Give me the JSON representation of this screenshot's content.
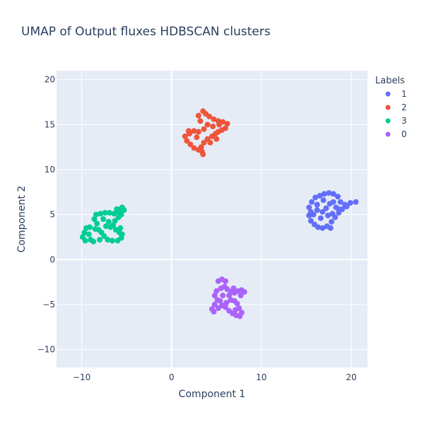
{
  "chart_data": {
    "type": "scatter",
    "title": "UMAP of Output fluxes HDBSCAN clusters",
    "xlabel": "Component 1",
    "ylabel": "Component 2",
    "xlim": [
      -12.8,
      21.8
    ],
    "ylim": [
      -12.0,
      21.0
    ],
    "xticks": [
      -10,
      0,
      10,
      20
    ],
    "yticks": [
      -10,
      -5,
      0,
      5,
      10,
      15,
      20
    ],
    "xtick_labels": [
      "−10",
      "0",
      "10",
      "20"
    ],
    "ytick_labels": [
      "−10",
      "−5",
      "0",
      "5",
      "10",
      "15",
      "20"
    ],
    "grid": true,
    "legend": {
      "title": "Labels",
      "placement": "right",
      "entries": [
        "1",
        "2",
        "3",
        "0"
      ]
    },
    "series": [
      {
        "name": "1",
        "color": "#636efa",
        "points": [
          [
            15.3,
            5.8
          ],
          [
            15.6,
            6.4
          ],
          [
            16.0,
            6.9
          ],
          [
            16.5,
            7.1
          ],
          [
            17.0,
            7.3
          ],
          [
            17.5,
            7.4
          ],
          [
            18.0,
            7.3
          ],
          [
            18.5,
            7.0
          ],
          [
            18.8,
            6.4
          ],
          [
            19.3,
            6.1
          ],
          [
            19.9,
            6.3
          ],
          [
            20.5,
            6.4
          ],
          [
            19.5,
            5.9
          ],
          [
            19.0,
            5.6
          ],
          [
            18.6,
            5.2
          ],
          [
            18.2,
            4.7
          ],
          [
            17.8,
            4.2
          ],
          [
            17.3,
            3.7
          ],
          [
            16.8,
            3.5
          ],
          [
            16.3,
            3.6
          ],
          [
            15.9,
            3.9
          ],
          [
            15.5,
            4.3
          ],
          [
            15.3,
            4.9
          ],
          [
            15.5,
            5.3
          ],
          [
            16.2,
            5.5
          ],
          [
            16.8,
            5.3
          ],
          [
            17.2,
            5.7
          ],
          [
            17.6,
            6.2
          ],
          [
            18.0,
            6.4
          ],
          [
            16.6,
            4.6
          ],
          [
            17.4,
            4.9
          ],
          [
            17.9,
            5.1
          ],
          [
            18.3,
            5.8
          ],
          [
            16.2,
            6.1
          ],
          [
            15.8,
            5.0
          ],
          [
            16.9,
            6.6
          ],
          [
            17.7,
            3.5
          ],
          [
            18.6,
            5.6
          ]
        ]
      },
      {
        "name": "2",
        "color": "#ef553b",
        "points": [
          [
            3.0,
            16.0
          ],
          [
            3.5,
            16.5
          ],
          [
            3.8,
            16.2
          ],
          [
            4.2,
            15.9
          ],
          [
            4.7,
            15.6
          ],
          [
            5.2,
            15.4
          ],
          [
            5.7,
            15.3
          ],
          [
            6.2,
            15.1
          ],
          [
            6.0,
            14.6
          ],
          [
            5.6,
            14.4
          ],
          [
            5.2,
            14.2
          ],
          [
            4.9,
            14.0
          ],
          [
            4.5,
            13.7
          ],
          [
            4.0,
            13.4
          ],
          [
            3.6,
            13.0
          ],
          [
            3.3,
            12.5
          ],
          [
            3.4,
            12.0
          ],
          [
            3.5,
            11.7
          ],
          [
            3.0,
            12.2
          ],
          [
            2.5,
            12.4
          ],
          [
            2.1,
            12.8
          ],
          [
            1.7,
            13.2
          ],
          [
            1.5,
            13.7
          ],
          [
            2.0,
            14.0
          ],
          [
            2.5,
            14.3
          ],
          [
            3.0,
            14.2
          ],
          [
            3.6,
            14.5
          ],
          [
            4.0,
            15.0
          ],
          [
            4.6,
            14.8
          ],
          [
            5.3,
            15.0
          ],
          [
            2.8,
            13.6
          ],
          [
            4.3,
            13.0
          ],
          [
            5.0,
            13.4
          ],
          [
            3.2,
            15.4
          ],
          [
            1.9,
            14.3
          ]
        ]
      },
      {
        "name": "3",
        "color": "#00cc96",
        "points": [
          [
            -9.9,
            2.5
          ],
          [
            -9.7,
            3.0
          ],
          [
            -9.5,
            3.5
          ],
          [
            -9.2,
            2.8
          ],
          [
            -9.0,
            2.2
          ],
          [
            -8.7,
            2.0
          ],
          [
            -8.5,
            3.4
          ],
          [
            -8.3,
            4.0
          ],
          [
            -8.6,
            4.5
          ],
          [
            -8.4,
            5.0
          ],
          [
            -7.9,
            5.1
          ],
          [
            -7.4,
            5.2
          ],
          [
            -6.9,
            5.2
          ],
          [
            -6.4,
            5.1
          ],
          [
            -6.0,
            5.3
          ],
          [
            -5.7,
            5.6
          ],
          [
            -5.5,
            5.8
          ],
          [
            -5.3,
            5.5
          ],
          [
            -5.6,
            5.0
          ],
          [
            -5.9,
            4.7
          ],
          [
            -6.3,
            4.3
          ],
          [
            -6.5,
            3.8
          ],
          [
            -6.2,
            3.3
          ],
          [
            -5.8,
            3.0
          ],
          [
            -5.5,
            2.8
          ],
          [
            -5.6,
            2.4
          ],
          [
            -6.0,
            2.1
          ],
          [
            -6.6,
            2.1
          ],
          [
            -7.1,
            2.2
          ],
          [
            -7.5,
            2.6
          ],
          [
            -7.8,
            3.0
          ],
          [
            -8.1,
            3.3
          ],
          [
            -7.3,
            3.7
          ],
          [
            -7.0,
            4.2
          ],
          [
            -6.8,
            3.6
          ],
          [
            -9.6,
            2.1
          ],
          [
            -9.1,
            3.6
          ],
          [
            -8.0,
            2.2
          ],
          [
            -7.6,
            4.5
          ],
          [
            -6.1,
            5.6
          ],
          [
            -5.7,
            3.5
          ]
        ]
      },
      {
        "name": "0",
        "color": "#ab63fa",
        "points": [
          [
            5.2,
            -2.4
          ],
          [
            5.6,
            -2.2
          ],
          [
            6.0,
            -2.4
          ],
          [
            5.9,
            -3.0
          ],
          [
            5.5,
            -3.2
          ],
          [
            5.0,
            -3.5
          ],
          [
            4.8,
            -4.0
          ],
          [
            5.1,
            -4.5
          ],
          [
            4.8,
            -5.0
          ],
          [
            4.5,
            -5.5
          ],
          [
            4.7,
            -5.8
          ],
          [
            5.2,
            -5.4
          ],
          [
            5.6,
            -5.1
          ],
          [
            6.0,
            -5.3
          ],
          [
            6.4,
            -5.7
          ],
          [
            6.8,
            -6.0
          ],
          [
            7.2,
            -6.2
          ],
          [
            7.6,
            -6.3
          ],
          [
            7.8,
            -5.9
          ],
          [
            7.5,
            -5.4
          ],
          [
            7.3,
            -4.9
          ],
          [
            7.0,
            -4.6
          ],
          [
            6.6,
            -4.5
          ],
          [
            6.4,
            -4.0
          ],
          [
            6.6,
            -3.6
          ],
          [
            7.0,
            -3.7
          ],
          [
            7.4,
            -3.5
          ],
          [
            7.8,
            -3.4
          ],
          [
            8.1,
            -3.6
          ],
          [
            7.7,
            -4.0
          ],
          [
            6.2,
            -3.3
          ],
          [
            5.7,
            -4.0
          ],
          [
            6.1,
            -4.8
          ],
          [
            7.1,
            -5.6
          ],
          [
            5.4,
            -4.6
          ],
          [
            6.9,
            -3.2
          ]
        ]
      }
    ]
  }
}
